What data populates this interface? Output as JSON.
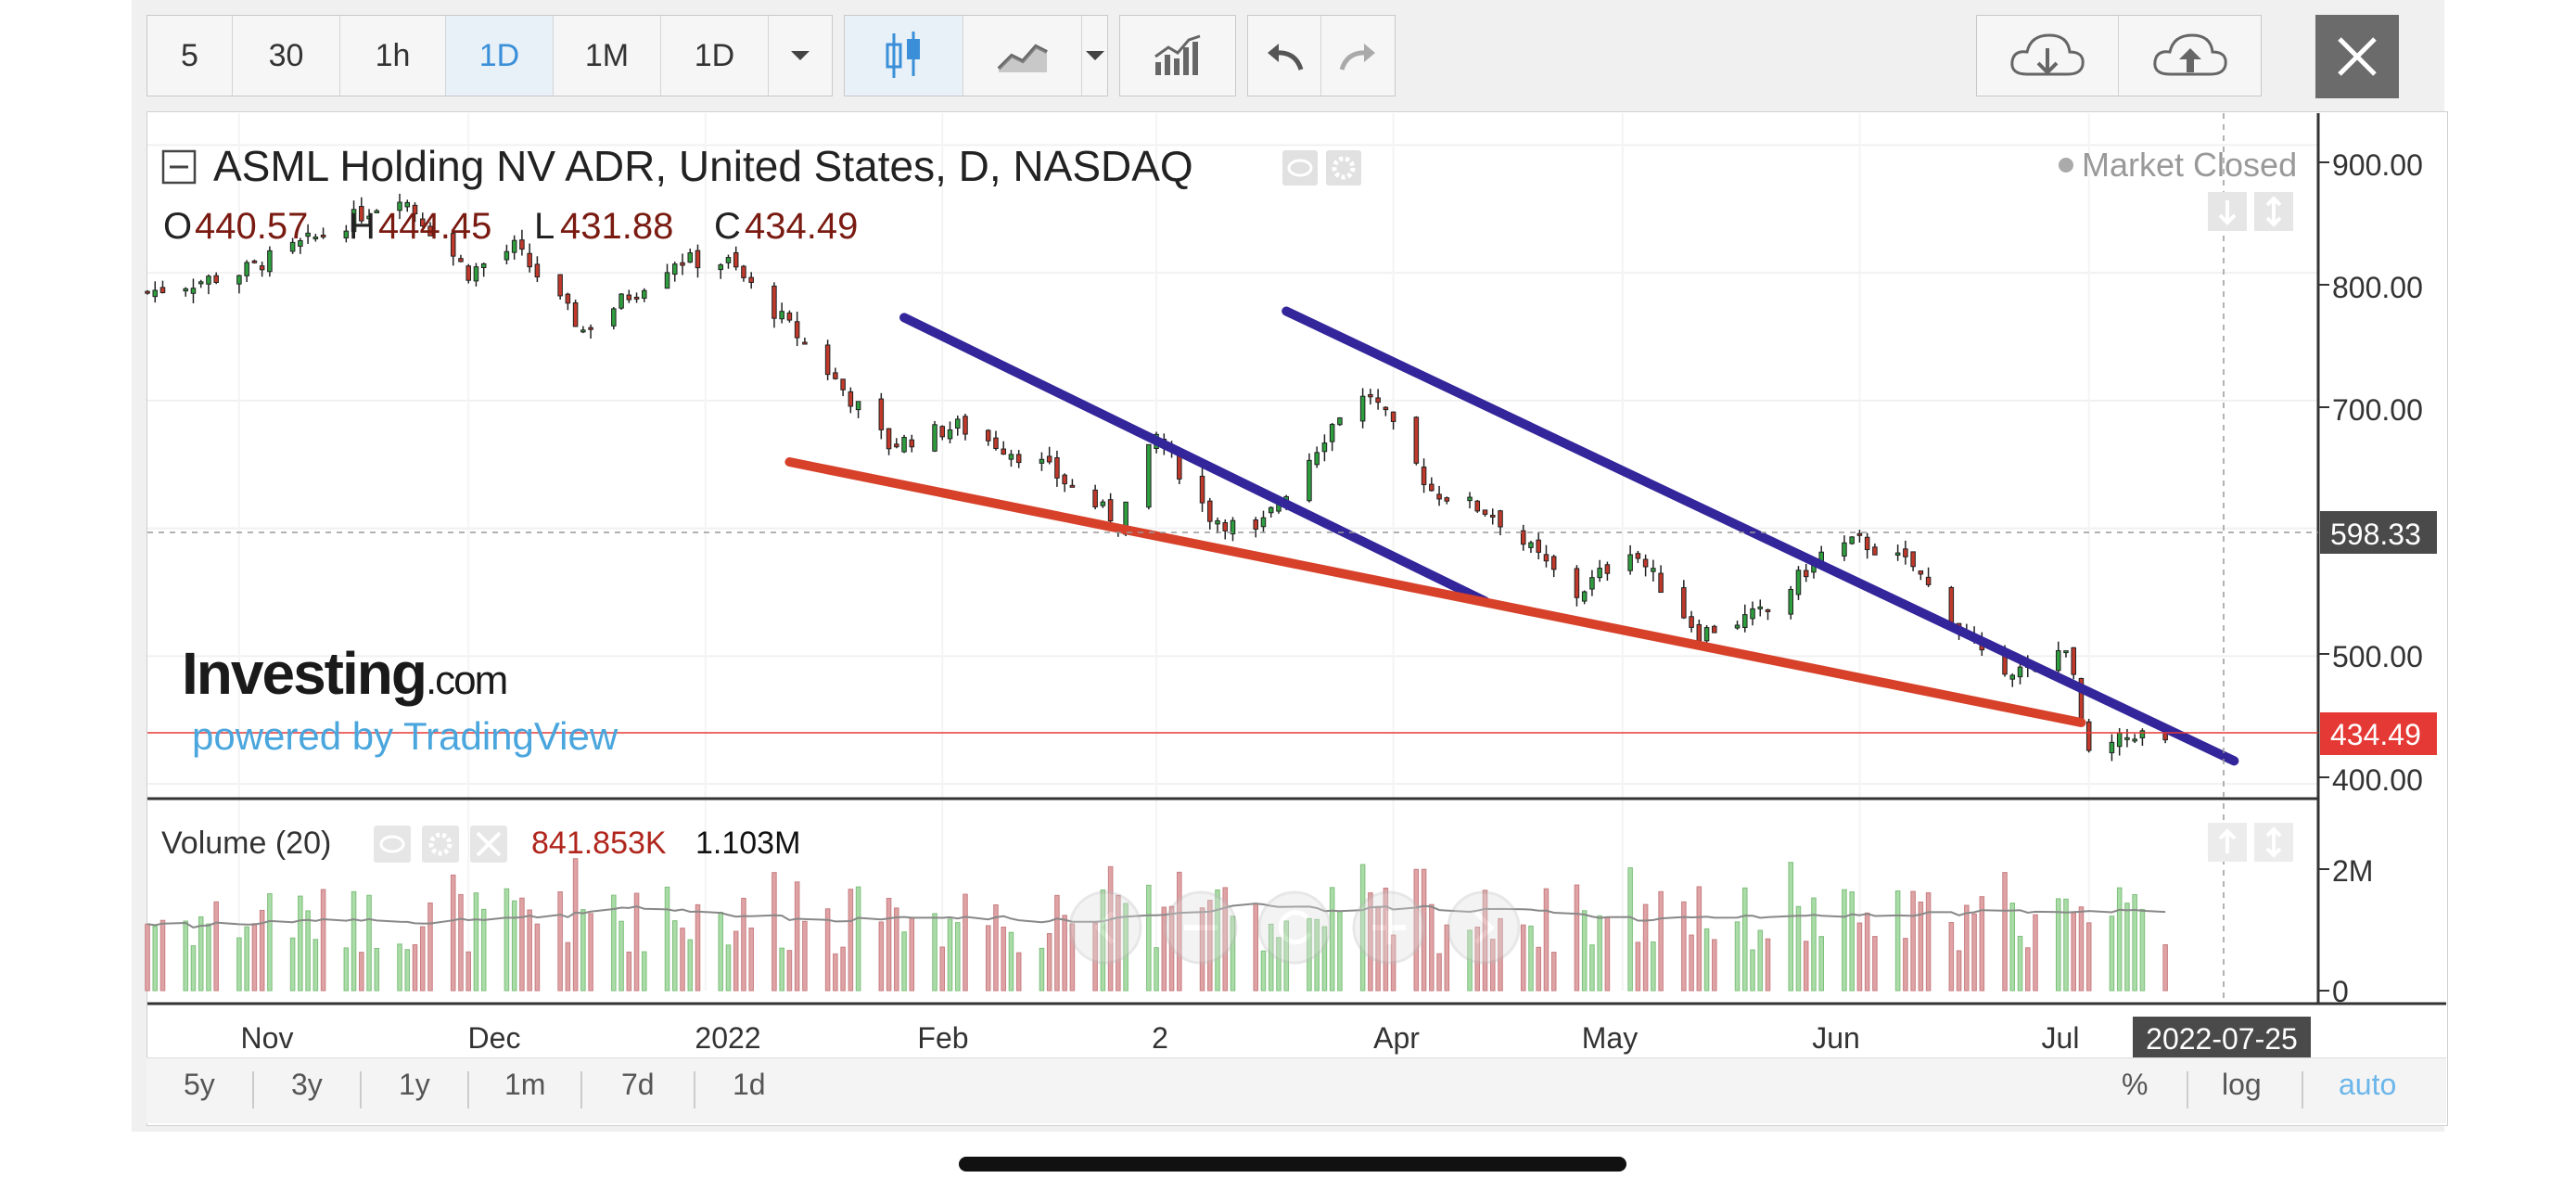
{
  "toolbar": {
    "intervals": [
      "5",
      "30",
      "1h",
      "1D",
      "1M",
      "1D"
    ],
    "active_interval_index": 3,
    "icons": [
      "chevron-down-icon",
      "candlestick-icon",
      "line-chart-icon",
      "chevron-down-icon",
      "indicators-icon",
      "undo-icon",
      "redo-icon",
      "cloud-download-icon",
      "cloud-upload-icon",
      "close-icon"
    ]
  },
  "legend": {
    "title": "ASML Holding NV ADR, United States, D, NASDAQ",
    "o_label": "O",
    "o_value": "440.57",
    "h_label": "H",
    "h_value": "444.45",
    "l_label": "L",
    "l_value": "431.88",
    "c_label": "C",
    "c_value": "434.49",
    "market_status": "Market Closed"
  },
  "watermark": {
    "brand": "Investing",
    "brand_suffix": ".com",
    "powered": "powered by TradingView"
  },
  "volume_legend": {
    "title": "Volume (20)",
    "value1": "841.853K",
    "value2": "1.103M"
  },
  "price_axis": {
    "ticks": [
      "900.00",
      "800.00",
      "700.00",
      "500.00",
      "400.00"
    ],
    "crosshair_label": "598.33",
    "last_price_label": "434.49"
  },
  "volume_axis": {
    "ticks": [
      "2M",
      "0"
    ]
  },
  "time_axis": {
    "ticks": [
      "Nov",
      "Dec",
      "2022",
      "Feb",
      "2",
      "Apr",
      "May",
      "Jun",
      "Jul"
    ],
    "cursor_label": "2022-07-25"
  },
  "range_buttons": [
    "5y",
    "3y",
    "1y",
    "1m",
    "7d",
    "1d"
  ],
  "scale_buttons": [
    "%",
    "log",
    "auto"
  ],
  "colors": {
    "up": "#2e9e3e",
    "down": "#c0392b",
    "up_vol": "#a9dca7",
    "down_vol": "#dfa3a5",
    "trendline_blue": "#33259a",
    "trendline_red": "#d7412a",
    "last_price": "#e53935",
    "accent": "#3a8fd8"
  },
  "chart_data": {
    "type": "candlestick",
    "title": "ASML Holding NV ADR, United States, D, NASDAQ",
    "ylim": [
      395,
      925
    ],
    "x_range": [
      "2021-10-20",
      "2022-07-31"
    ],
    "price_keypoints": [
      [
        "2021-10-20",
        785
      ],
      [
        "2021-11-01",
        800
      ],
      [
        "2021-11-12",
        830
      ],
      [
        "2021-11-22",
        862
      ],
      [
        "2021-12-01",
        800
      ],
      [
        "2021-12-07",
        820
      ],
      [
        "2021-12-16",
        755
      ],
      [
        "2021-12-28",
        810
      ],
      [
        "2022-01-04",
        808
      ],
      [
        "2022-01-14",
        745
      ],
      [
        "2022-01-25",
        665
      ],
      [
        "2022-02-03",
        680
      ],
      [
        "2022-02-14",
        650
      ],
      [
        "2022-02-24",
        605
      ],
      [
        "2022-03-01",
        672
      ],
      [
        "2022-03-08",
        610
      ],
      [
        "2022-03-14",
        595
      ],
      [
        "2022-03-25",
        690
      ],
      [
        "2022-03-29",
        705
      ],
      [
        "2022-04-06",
        630
      ],
      [
        "2022-04-14",
        612
      ],
      [
        "2022-04-25",
        548
      ],
      [
        "2022-05-02",
        585
      ],
      [
        "2022-05-11",
        518
      ],
      [
        "2022-05-20",
        535
      ],
      [
        "2022-05-27",
        580
      ],
      [
        "2022-06-01",
        590
      ],
      [
        "2022-06-08",
        570
      ],
      [
        "2022-06-17",
        498
      ],
      [
        "2022-06-24",
        485
      ],
      [
        "2022-06-28",
        510
      ],
      [
        "2022-07-01",
        420
      ],
      [
        "2022-07-07",
        440
      ],
      [
        "2022-07-11",
        434.49
      ]
    ],
    "last": {
      "date": "2022-07-11",
      "open": 440.57,
      "high": 444.45,
      "low": 431.88,
      "close": 434.49
    },
    "volume_ylim": [
      0,
      3000000
    ],
    "trendlines": [
      {
        "color": "blue",
        "from": [
          "2022-01-27",
          765
        ],
        "to": [
          "2022-04-13",
          543
        ]
      },
      {
        "color": "blue",
        "from": [
          "2022-03-18",
          770
        ],
        "to": [
          "2022-07-20",
          418
        ]
      },
      {
        "color": "red",
        "from": [
          "2022-01-12",
          652
        ],
        "to": [
          "2022-06-30",
          448
        ]
      }
    ]
  }
}
